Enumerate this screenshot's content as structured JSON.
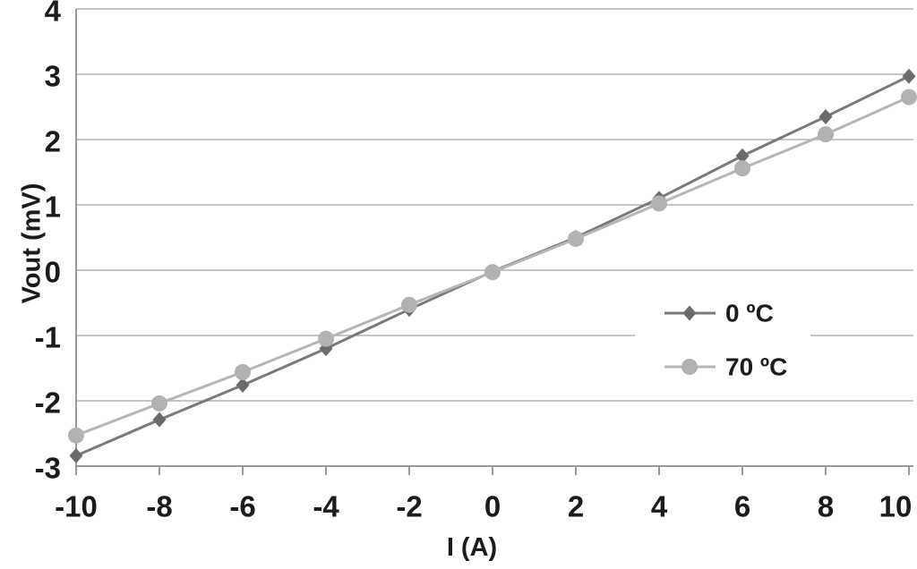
{
  "chart_data": {
    "type": "line",
    "title": "",
    "xlabel": "I (A)",
    "ylabel": "Vout (mV)",
    "xlim": [
      -10,
      10
    ],
    "ylim": [
      -3,
      4
    ],
    "x_ticks": [
      -10,
      -8,
      -6,
      -4,
      -2,
      0,
      2,
      4,
      6,
      8,
      10
    ],
    "y_ticks": [
      4,
      3,
      2,
      1,
      0,
      -1,
      -2,
      -3
    ],
    "grid": "horizontal",
    "legend_position": "inside-right",
    "x": [
      -10,
      -8,
      -6,
      -4,
      -2,
      0,
      2,
      4,
      6,
      8,
      10
    ],
    "series": [
      {
        "name": "0 ºC",
        "marker": "diamond",
        "line_color": "#7a7a7a",
        "marker_color": "#6b6b6b",
        "values": [
          -2.84,
          -2.29,
          -1.76,
          -1.2,
          -0.6,
          -0.02,
          0.5,
          1.1,
          1.75,
          2.35,
          2.97
        ]
      },
      {
        "name": "70 ºC",
        "marker": "circle",
        "line_color": "#b6b6b6",
        "marker_color": "#b2b2b2",
        "values": [
          -2.53,
          -2.04,
          -1.56,
          -1.05,
          -0.53,
          -0.03,
          0.48,
          1.02,
          1.56,
          2.08,
          2.65
        ]
      }
    ],
    "colors": {
      "background": "#ffffff",
      "gridline": "#a5a5a5",
      "axis": "#8f8f8f",
      "text": "#1b1b1b",
      "legend_background": "#ffffff"
    }
  }
}
